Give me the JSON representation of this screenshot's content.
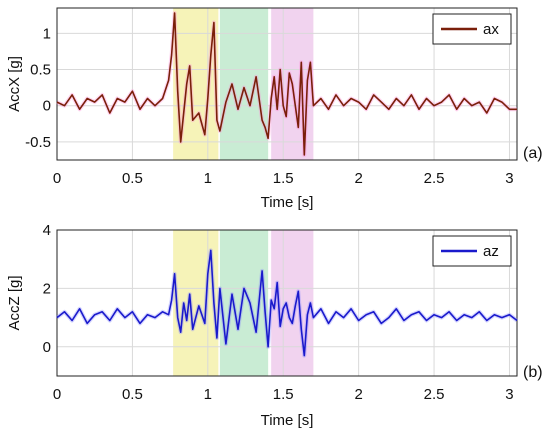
{
  "chart_data": [
    {
      "type": "line",
      "panel_label": "(a)",
      "xlabel": "Time [s]",
      "ylabel": "AccX [g]",
      "xlim": [
        0,
        3.05
      ],
      "ylim": [
        -0.75,
        1.35
      ],
      "xticks": [
        0,
        0.5,
        1,
        1.5,
        2,
        2.5,
        3
      ],
      "xtick_labels": [
        "0",
        "0.5",
        "1",
        "1.5",
        "2",
        "2.5",
        "3"
      ],
      "yticks": [
        -0.5,
        0,
        0.5,
        1
      ],
      "ytick_labels": [
        "-0.5",
        "0",
        "0.5",
        "1"
      ],
      "grid": true,
      "legend_position": "top-right",
      "highlight_bands": [
        {
          "x0": 0.77,
          "x1": 1.07,
          "color": "#f6f3b8"
        },
        {
          "x0": 1.08,
          "x1": 1.4,
          "color": "#c9ecd4"
        },
        {
          "x0": 1.42,
          "x1": 1.7,
          "color": "#f1d3ef"
        }
      ],
      "series": [
        {
          "name": "ax",
          "color": "#7a1f0a",
          "halo_color": "#ff8ad8",
          "x": [
            0,
            0.05,
            0.1,
            0.15,
            0.2,
            0.25,
            0.3,
            0.35,
            0.4,
            0.45,
            0.5,
            0.55,
            0.6,
            0.65,
            0.7,
            0.74,
            0.76,
            0.78,
            0.8,
            0.82,
            0.84,
            0.86,
            0.88,
            0.9,
            0.94,
            0.98,
            1.0,
            1.02,
            1.04,
            1.06,
            1.08,
            1.12,
            1.16,
            1.2,
            1.24,
            1.28,
            1.32,
            1.36,
            1.38,
            1.4,
            1.42,
            1.44,
            1.46,
            1.48,
            1.5,
            1.52,
            1.54,
            1.56,
            1.58,
            1.6,
            1.62,
            1.64,
            1.66,
            1.68,
            1.7,
            1.75,
            1.8,
            1.85,
            1.9,
            1.95,
            2.0,
            2.05,
            2.1,
            2.15,
            2.2,
            2.25,
            2.3,
            2.35,
            2.4,
            2.45,
            2.5,
            2.55,
            2.6,
            2.65,
            2.7,
            2.75,
            2.8,
            2.85,
            2.9,
            2.95,
            3.0,
            3.05
          ],
          "y": [
            0.05,
            0.0,
            0.15,
            -0.05,
            0.1,
            0.05,
            0.15,
            -0.1,
            0.1,
            0.05,
            0.2,
            -0.05,
            0.1,
            0.0,
            0.1,
            0.35,
            0.7,
            1.28,
            0.2,
            -0.5,
            -0.1,
            0.3,
            0.55,
            -0.2,
            -0.1,
            -0.4,
            0.1,
            0.7,
            1.15,
            -0.2,
            -0.35,
            0.05,
            0.3,
            -0.05,
            0.25,
            0.0,
            0.4,
            -0.2,
            -0.3,
            -0.45,
            0.1,
            0.4,
            -0.05,
            0.5,
            0.0,
            -0.15,
            0.45,
            0.3,
            0.0,
            -0.3,
            0.6,
            -0.68,
            0.35,
            0.6,
            0.0,
            0.1,
            -0.05,
            0.15,
            0.0,
            0.1,
            0.05,
            -0.05,
            0.15,
            0.05,
            -0.05,
            0.1,
            0.0,
            0.15,
            -0.05,
            0.1,
            0.0,
            0.05,
            0.15,
            -0.05,
            0.1,
            0.0,
            0.05,
            -0.1,
            0.1,
            0.05,
            -0.05,
            -0.05
          ]
        }
      ]
    },
    {
      "type": "line",
      "panel_label": "(b)",
      "xlabel": "Time [s]",
      "ylabel": "AccZ [g]",
      "xlim": [
        0,
        3.05
      ],
      "ylim": [
        -1,
        4
      ],
      "xticks": [
        0,
        0.5,
        1,
        1.5,
        2,
        2.5,
        3
      ],
      "xtick_labels": [
        "0",
        "0.5",
        "1",
        "1.5",
        "2",
        "2.5",
        "3"
      ],
      "yticks": [
        0,
        2,
        4
      ],
      "ytick_labels": [
        "0",
        "2",
        "4"
      ],
      "grid": true,
      "legend_position": "top-right",
      "highlight_bands": [
        {
          "x0": 0.77,
          "x1": 1.07,
          "color": "#f6f3b8"
        },
        {
          "x0": 1.08,
          "x1": 1.4,
          "color": "#c9ecd4"
        },
        {
          "x0": 1.42,
          "x1": 1.7,
          "color": "#f1d3ef"
        }
      ],
      "series": [
        {
          "name": "az",
          "color": "#1a1acc",
          "halo_color": "#8888ff",
          "x": [
            0,
            0.05,
            0.1,
            0.15,
            0.2,
            0.25,
            0.3,
            0.35,
            0.4,
            0.45,
            0.5,
            0.55,
            0.6,
            0.65,
            0.7,
            0.74,
            0.76,
            0.78,
            0.8,
            0.82,
            0.84,
            0.86,
            0.88,
            0.9,
            0.94,
            0.98,
            1.0,
            1.02,
            1.04,
            1.06,
            1.08,
            1.12,
            1.16,
            1.2,
            1.24,
            1.28,
            1.32,
            1.36,
            1.38,
            1.4,
            1.42,
            1.44,
            1.46,
            1.48,
            1.5,
            1.52,
            1.54,
            1.56,
            1.58,
            1.6,
            1.62,
            1.64,
            1.66,
            1.68,
            1.7,
            1.75,
            1.8,
            1.85,
            1.9,
            1.95,
            2.0,
            2.05,
            2.1,
            2.15,
            2.2,
            2.25,
            2.3,
            2.35,
            2.4,
            2.45,
            2.5,
            2.55,
            2.6,
            2.65,
            2.7,
            2.75,
            2.8,
            2.85,
            2.9,
            2.95,
            3.0,
            3.05
          ],
          "y": [
            1.0,
            1.2,
            0.9,
            1.3,
            0.8,
            1.1,
            1.2,
            0.9,
            1.3,
            1.0,
            1.2,
            0.8,
            1.1,
            1.0,
            1.2,
            1.1,
            1.6,
            2.5,
            1.0,
            0.5,
            1.5,
            0.9,
            1.8,
            0.6,
            1.4,
            0.8,
            2.5,
            3.3,
            1.5,
            0.3,
            2.0,
            0.1,
            1.8,
            0.6,
            2.0,
            1.5,
            0.5,
            2.6,
            1.2,
            0.0,
            1.6,
            1.3,
            2.2,
            0.7,
            1.3,
            1.5,
            1.0,
            0.8,
            1.4,
            1.9,
            0.6,
            -0.3,
            1.1,
            1.5,
            1.0,
            1.3,
            0.8,
            1.2,
            1.0,
            1.3,
            0.9,
            1.1,
            1.2,
            0.8,
            1.0,
            1.3,
            0.9,
            1.1,
            1.2,
            0.9,
            1.1,
            1.0,
            1.2,
            0.9,
            1.1,
            1.0,
            1.2,
            0.9,
            1.1,
            1.0,
            1.1,
            0.9
          ]
        }
      ]
    }
  ]
}
